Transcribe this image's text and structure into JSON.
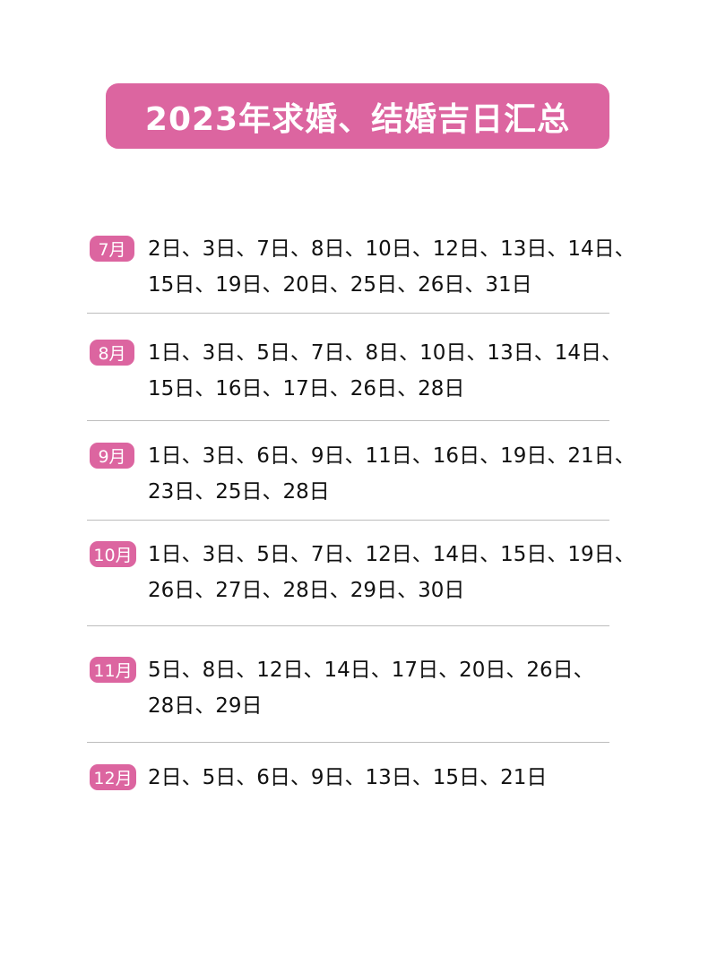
{
  "title": "2023年求婚、结婚吉日汇总",
  "accent_color": "#dc65a0",
  "months": [
    {
      "label": "7月",
      "lines": [
        "2日、3日、7日、8日、10日、12日、13日、14日、",
        "15日、19日、20日、25日、26日、31日"
      ]
    },
    {
      "label": "8月",
      "lines": [
        "1日、3日、5日、7日、8日、10日、13日、14日、",
        "15日、16日、17日、26日、28日"
      ]
    },
    {
      "label": "9月",
      "lines": [
        "1日、3日、6日、9日、11日、16日、19日、21日、",
        "23日、25日、28日"
      ]
    },
    {
      "label": "10月",
      "lines": [
        "1日、3日、5日、7日、12日、14日、15日、19日、",
        "26日、27日、28日、29日、30日"
      ]
    },
    {
      "label": "11月",
      "lines": [
        "5日、8日、12日、14日、17日、20日、26日、",
        "28日、29日"
      ]
    },
    {
      "label": "12月",
      "lines": [
        "2日、5日、6日、9日、13日、15日、21日"
      ]
    }
  ]
}
